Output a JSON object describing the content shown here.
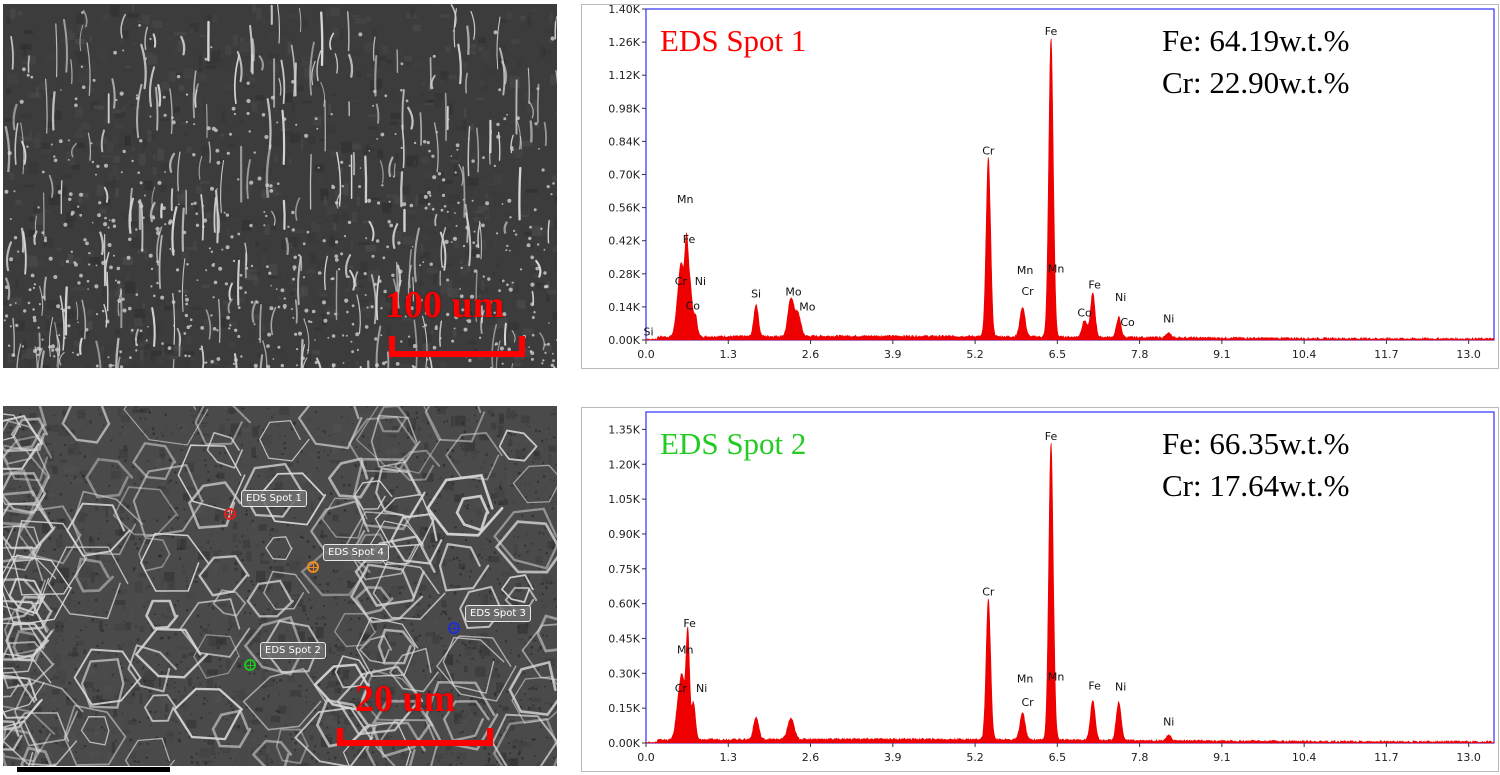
{
  "sem_top": {
    "scale_label": "100 um"
  },
  "sem_bottom": {
    "scale_label": "20 um",
    "spots": [
      {
        "label": "EDS Spot 1",
        "color": "#e02020"
      },
      {
        "label": "EDS Spot 4",
        "color": "#f08a20"
      },
      {
        "label": "EDS Spot 3",
        "color": "#2030d0"
      },
      {
        "label": "EDS Spot 2",
        "color": "#20c020"
      }
    ]
  },
  "chart_data": [
    {
      "type": "area",
      "title": "EDS Spot 1",
      "title_color": "#ff0000",
      "annotations": [
        "Fe: 64.19w.t.%",
        "Cr: 22.90w.t.%"
      ],
      "xlim": [
        0.0,
        13.4
      ],
      "ylim": [
        0,
        1400
      ],
      "x_ticks": [
        0.0,
        1.3,
        2.6,
        3.9,
        5.2,
        6.5,
        7.8,
        9.1,
        10.4,
        11.7,
        13.0
      ],
      "x_tick_labels": [
        "0.0",
        "1.3",
        "2.6",
        "3.9",
        "5.2",
        "6.5",
        "7.8",
        "9.1",
        "10.4",
        "11.7",
        "13.0"
      ],
      "y_ticks": [
        0,
        140,
        280,
        420,
        560,
        700,
        840,
        980,
        1120,
        1260,
        1400
      ],
      "y_tick_labels": [
        "0.00K",
        "0.14K",
        "0.28K",
        "0.42K",
        "0.56K",
        "0.70K",
        "0.84K",
        "0.98K",
        "1.12K",
        "1.26K",
        "1.40K"
      ],
      "series_color": "#ee0000",
      "baseline": 12,
      "peaks": [
        {
          "x": 0.52,
          "y": 175,
          "w": 0.045
        },
        {
          "x": 0.57,
          "y": 195,
          "w": 0.035
        },
        {
          "x": 0.64,
          "y": 380,
          "w": 0.028
        },
        {
          "x": 0.7,
          "y": 200,
          "w": 0.03
        },
        {
          "x": 0.78,
          "y": 90,
          "w": 0.03
        },
        {
          "x": 1.74,
          "y": 135,
          "w": 0.035
        },
        {
          "x": 2.29,
          "y": 160,
          "w": 0.045
        },
        {
          "x": 2.4,
          "y": 95,
          "w": 0.045
        },
        {
          "x": 5.41,
          "y": 755,
          "w": 0.035
        },
        {
          "x": 5.95,
          "y": 125,
          "w": 0.04
        },
        {
          "x": 6.4,
          "y": 1265,
          "w": 0.036
        },
        {
          "x": 6.93,
          "y": 70,
          "w": 0.04
        },
        {
          "x": 7.06,
          "y": 185,
          "w": 0.036
        },
        {
          "x": 7.47,
          "y": 85,
          "w": 0.035
        },
        {
          "x": 8.26,
          "y": 18,
          "w": 0.04
        }
      ],
      "peak_labels": [
        {
          "text": "Si",
          "x": 0.04,
          "y": 20
        },
        {
          "text": "Mn",
          "x": 0.62,
          "y": 580
        },
        {
          "text": "Fe",
          "x": 0.68,
          "y": 410
        },
        {
          "text": "Cr",
          "x": 0.55,
          "y": 232
        },
        {
          "text": "Ni",
          "x": 0.86,
          "y": 232
        },
        {
          "text": "Co",
          "x": 0.74,
          "y": 128
        },
        {
          "text": "Si",
          "x": 1.74,
          "y": 180
        },
        {
          "text": "Mo",
          "x": 2.33,
          "y": 188
        },
        {
          "text": "Mo",
          "x": 2.55,
          "y": 125
        },
        {
          "text": "Cr",
          "x": 5.41,
          "y": 785
        },
        {
          "text": "Fe",
          "x": 6.4,
          "y": 1290
        },
        {
          "text": "Mn",
          "x": 5.99,
          "y": 280
        },
        {
          "text": "Cr",
          "x": 6.03,
          "y": 190
        },
        {
          "text": "Mn",
          "x": 6.48,
          "y": 285
        },
        {
          "text": "Fe",
          "x": 7.09,
          "y": 218
        },
        {
          "text": "Co",
          "x": 6.93,
          "y": 100
        },
        {
          "text": "Ni",
          "x": 7.5,
          "y": 165
        },
        {
          "text": "Co",
          "x": 7.61,
          "y": 60
        },
        {
          "text": "Ni",
          "x": 8.26,
          "y": 75
        }
      ]
    },
    {
      "type": "area",
      "title": "EDS Spot 2",
      "title_color": "#22cc22",
      "annotations": [
        "Fe: 66.35w.t.%",
        "Cr: 17.64w.t.%"
      ],
      "xlim": [
        0.0,
        13.4
      ],
      "ylim": [
        0,
        1425
      ],
      "x_ticks": [
        0.0,
        1.3,
        2.6,
        3.9,
        5.2,
        6.5,
        7.8,
        9.1,
        10.4,
        11.7,
        13.0
      ],
      "x_tick_labels": [
        "0.0",
        "1.3",
        "2.6",
        "3.9",
        "5.2",
        "6.5",
        "7.8",
        "9.1",
        "10.4",
        "11.7",
        "13.0"
      ],
      "y_ticks": [
        0,
        150,
        300,
        450,
        600,
        750,
        900,
        1050,
        1200,
        1350
      ],
      "y_tick_labels": [
        "0.00K",
        "0.15K",
        "0.30K",
        "0.45K",
        "0.60K",
        "0.75K",
        "0.90K",
        "1.05K",
        "1.20K",
        "1.35K"
      ],
      "series_color": "#ee0000",
      "baseline": 12,
      "peaks": [
        {
          "x": 0.52,
          "y": 170,
          "w": 0.045
        },
        {
          "x": 0.58,
          "y": 200,
          "w": 0.035
        },
        {
          "x": 0.66,
          "y": 470,
          "w": 0.028
        },
        {
          "x": 0.75,
          "y": 160,
          "w": 0.03
        },
        {
          "x": 1.74,
          "y": 95,
          "w": 0.04
        },
        {
          "x": 2.29,
          "y": 90,
          "w": 0.05
        },
        {
          "x": 5.41,
          "y": 605,
          "w": 0.035
        },
        {
          "x": 5.95,
          "y": 115,
          "w": 0.04
        },
        {
          "x": 6.4,
          "y": 1280,
          "w": 0.036
        },
        {
          "x": 7.06,
          "y": 170,
          "w": 0.038
        },
        {
          "x": 7.47,
          "y": 165,
          "w": 0.038
        },
        {
          "x": 8.26,
          "y": 22,
          "w": 0.04
        }
      ],
      "peak_labels": [
        {
          "text": "Fe",
          "x": 0.69,
          "y": 500
        },
        {
          "text": "Mn",
          "x": 0.62,
          "y": 385
        },
        {
          "text": "Cr",
          "x": 0.55,
          "y": 220
        },
        {
          "text": "Ni",
          "x": 0.88,
          "y": 220
        },
        {
          "text": "Cr",
          "x": 5.41,
          "y": 635
        },
        {
          "text": "Fe",
          "x": 6.4,
          "y": 1305
        },
        {
          "text": "Mn",
          "x": 5.99,
          "y": 260
        },
        {
          "text": "Cr",
          "x": 6.03,
          "y": 160
        },
        {
          "text": "Mn",
          "x": 6.48,
          "y": 270
        },
        {
          "text": "Fe",
          "x": 7.09,
          "y": 230
        },
        {
          "text": "Ni",
          "x": 7.5,
          "y": 225
        },
        {
          "text": "Ni",
          "x": 8.26,
          "y": 75
        }
      ]
    }
  ]
}
